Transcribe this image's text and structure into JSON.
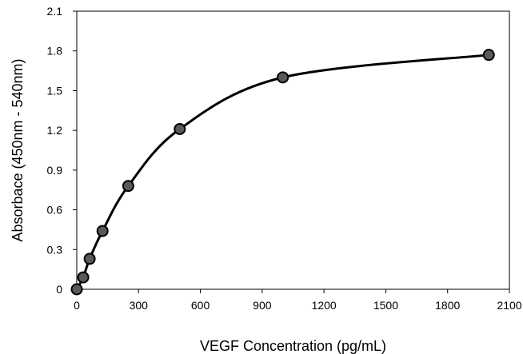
{
  "chart_data": {
    "type": "scatter",
    "xlabel": "VEGF Concentration (pg/mL)",
    "ylabel": "Absorbace (450nm - 540nm)",
    "xlim": [
      0,
      2100
    ],
    "ylim": [
      0,
      2.1
    ],
    "x_ticks": [
      "0",
      "300",
      "600",
      "900",
      "1200",
      "1500",
      "1800",
      "2100"
    ],
    "y_ticks": [
      "0",
      "0.3",
      "0.6",
      "0.9",
      "1.2",
      "1.5",
      "1.8",
      "2.1"
    ],
    "x": [
      0,
      31.25,
      62.5,
      125,
      250,
      500,
      1000,
      2000
    ],
    "y": [
      0,
      0.09,
      0.23,
      0.44,
      0.78,
      1.21,
      1.6,
      1.77
    ],
    "grid": false,
    "series_line": "smooth",
    "colors": {
      "marker_fill": "#595959",
      "marker_stroke": "#000000",
      "line": "#000000",
      "axis": "#000000"
    }
  }
}
